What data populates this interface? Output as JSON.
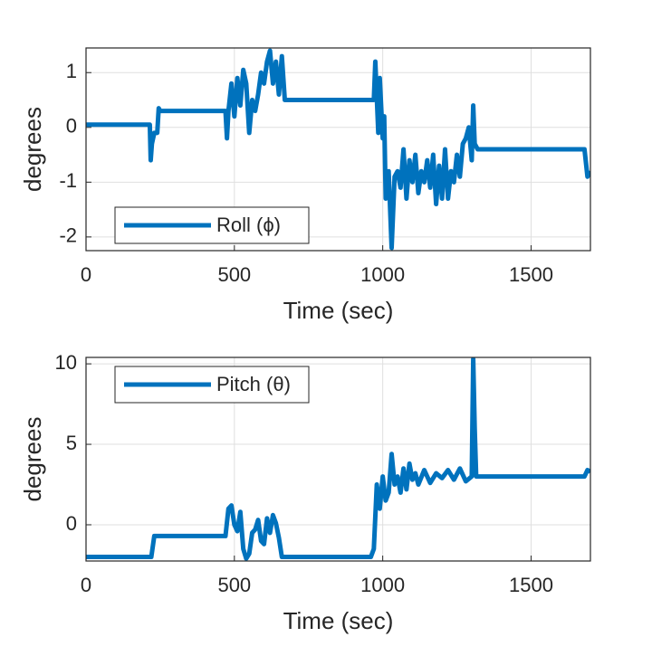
{
  "chart_data": [
    {
      "type": "line",
      "xlabel": "Time (sec)",
      "ylabel": "degrees",
      "x": [
        0,
        100,
        200,
        215,
        218,
        222,
        230,
        240,
        245,
        250,
        300,
        400,
        470,
        475,
        480,
        490,
        500,
        510,
        520,
        530,
        540,
        550,
        560,
        570,
        580,
        590,
        600,
        610,
        620,
        630,
        640,
        650,
        660,
        670,
        700,
        800,
        900,
        970,
        975,
        985,
        990,
        1000,
        1005,
        1010,
        1020,
        1030,
        1040,
        1050,
        1060,
        1070,
        1080,
        1090,
        1100,
        1110,
        1120,
        1130,
        1140,
        1150,
        1160,
        1170,
        1180,
        1190,
        1200,
        1210,
        1220,
        1230,
        1240,
        1250,
        1260,
        1270,
        1280,
        1290,
        1300,
        1305,
        1310,
        1320,
        1400,
        1500,
        1600,
        1680,
        1690,
        1700
      ],
      "series": [
        {
          "name": "Roll (ϕ)",
          "color": "#0072bd",
          "values": [
            0.05,
            0.05,
            0.05,
            0.05,
            -0.6,
            -0.3,
            -0.1,
            -0.1,
            0.35,
            0.3,
            0.3,
            0.3,
            0.3,
            -0.2,
            0.3,
            0.8,
            0.2,
            0.9,
            0.4,
            1.05,
            0.8,
            -0.1,
            0.5,
            0.3,
            0.6,
            1.0,
            0.8,
            1.2,
            1.4,
            0.8,
            1.2,
            0.6,
            1.3,
            0.5,
            0.5,
            0.5,
            0.5,
            0.5,
            1.2,
            -0.1,
            0.9,
            -0.2,
            0.2,
            -1.3,
            -0.8,
            -2.2,
            -0.9,
            -0.8,
            -1.1,
            -0.4,
            -1.3,
            -0.6,
            -1.0,
            -0.5,
            -1.2,
            -0.8,
            -1.0,
            -0.6,
            -1.1,
            -0.5,
            -1.4,
            -0.7,
            -1.3,
            -0.4,
            -1.3,
            -0.8,
            -1.0,
            -0.5,
            -0.9,
            -0.3,
            -0.2,
            0.0,
            -0.6,
            0.4,
            -0.3,
            -0.4,
            -0.4,
            -0.4,
            -0.4,
            -0.4,
            -0.9,
            -0.8
          ]
        }
      ],
      "xlim": [
        0,
        1700
      ],
      "ylim": [
        -2.25,
        1.45
      ],
      "xticks": [
        0,
        500,
        1000,
        1500
      ],
      "yticks": [
        -2,
        -1,
        0,
        1
      ],
      "grid": true,
      "legend": "lower left"
    },
    {
      "type": "line",
      "xlabel": "Time (sec)",
      "ylabel": "degrees",
      "x": [
        0,
        100,
        200,
        220,
        230,
        300,
        400,
        470,
        480,
        490,
        500,
        510,
        520,
        530,
        540,
        550,
        560,
        570,
        580,
        590,
        600,
        610,
        620,
        630,
        640,
        650,
        660,
        700,
        800,
        900,
        960,
        970,
        980,
        990,
        1000,
        1010,
        1020,
        1030,
        1040,
        1050,
        1060,
        1070,
        1080,
        1090,
        1100,
        1110,
        1120,
        1140,
        1160,
        1180,
        1200,
        1220,
        1240,
        1260,
        1280,
        1300,
        1305,
        1310,
        1315,
        1400,
        1500,
        1600,
        1680,
        1690,
        1700
      ],
      "series": [
        {
          "name": "Pitch (θ)",
          "color": "#0072bd",
          "values": [
            -2,
            -2,
            -2,
            -2,
            -0.7,
            -0.7,
            -0.7,
            -0.7,
            1.0,
            1.2,
            0.0,
            -0.4,
            0.8,
            -1.5,
            -2.1,
            -1.8,
            -0.5,
            -0.3,
            0.3,
            -1.0,
            -1.2,
            0.4,
            -0.5,
            0.6,
            0.1,
            -0.8,
            -2,
            -2,
            -2,
            -2,
            -2,
            -1.5,
            2.5,
            1.0,
            3.0,
            1.5,
            2.0,
            4.4,
            2.5,
            3.0,
            2.0,
            3.5,
            2.2,
            3.8,
            2.8,
            3.2,
            2.5,
            3.4,
            2.6,
            3.2,
            2.9,
            3.4,
            2.8,
            3.5,
            2.7,
            3.0,
            10.3,
            6.0,
            3.0,
            3.0,
            3.0,
            3.0,
            3.0,
            3.4,
            3.3
          ]
        }
      ],
      "xlim": [
        0,
        1700
      ],
      "ylim": [
        -2.25,
        10.4
      ],
      "xticks": [
        0,
        500,
        1000,
        1500
      ],
      "yticks": [
        0,
        5,
        10
      ],
      "grid": true,
      "legend": "upper left"
    }
  ]
}
